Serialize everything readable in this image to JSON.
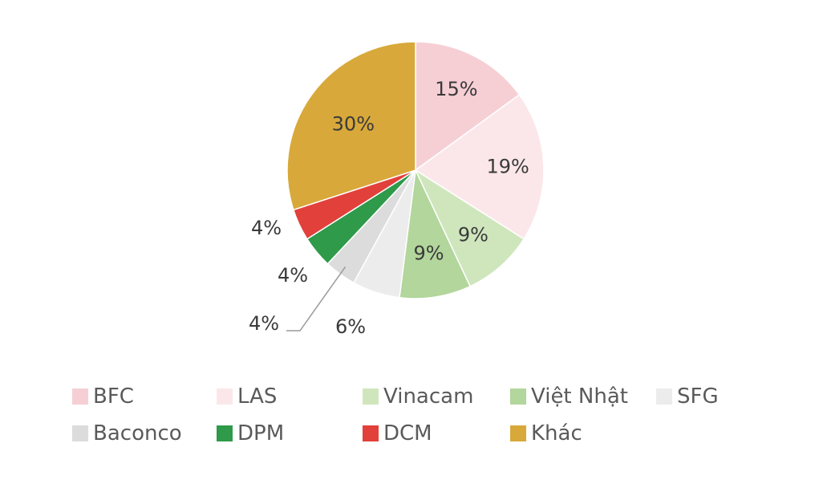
{
  "chart_data": {
    "type": "pie",
    "start_angle_deg": 0,
    "direction": "clockwise",
    "slices": [
      {
        "name": "BFC",
        "value": 15,
        "label": "15%",
        "color": "#f6cfd5"
      },
      {
        "name": "LAS",
        "value": 19,
        "label": "19%",
        "color": "#fbe7ea"
      },
      {
        "name": "Vinacam",
        "value": 9,
        "label": "9%",
        "color": "#cfe6bd"
      },
      {
        "name": "Việt Nhật",
        "value": 9,
        "label": "9%",
        "color": "#b2d69b"
      },
      {
        "name": "SFG",
        "value": 6,
        "label": "6%",
        "color": "#ececec"
      },
      {
        "name": "Baconco",
        "value": 4,
        "label": "4%",
        "color": "#dcdcdc"
      },
      {
        "name": "DPM",
        "value": 4,
        "label": "4%",
        "color": "#2e9a4a"
      },
      {
        "name": "DCM",
        "value": 4,
        "label": "4%",
        "color": "#e2403b"
      },
      {
        "name": "Khác",
        "value": 30,
        "label": "30%",
        "color": "#d8a93a"
      }
    ],
    "legend_position": "bottom"
  }
}
